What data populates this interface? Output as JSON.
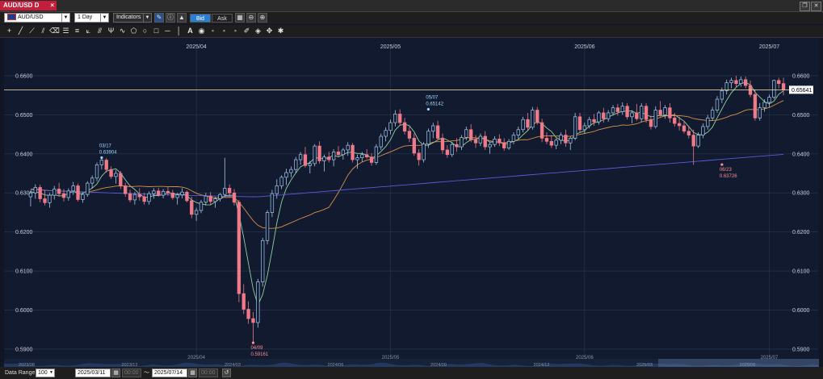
{
  "window": {
    "tab_title": "AUD/USD D",
    "close_glyph": "×",
    "restore_glyph": "❐",
    "close_btn_glyph": "✕"
  },
  "toolbar": {
    "symbol": "AUD/USD",
    "timeframe": "1 Day",
    "indicators_label": "Indicators",
    "bid_label": "Bid",
    "ask_label": "Ask"
  },
  "bottom": {
    "date_range_label": "Data Range:",
    "range_value": "100",
    "start_date": "2025/03/11",
    "tilde": "〜",
    "end_date": "2025/07/14",
    "time1": "00:00",
    "time2": "00:00"
  },
  "colors": {
    "bull_fill": "#0f1e36",
    "bull_stroke": "#a9c6e6",
    "bear": "#f07a8a",
    "ma_green": "#8fd19e",
    "ma_orange": "#d99048",
    "ma_blue": "#5a5ad8",
    "last_price_line": "#f5edb0",
    "grid": "#2c3852",
    "text": "#c8ccd8"
  },
  "chart_data": {
    "type": "candlestick",
    "y_ticks": [
      "0.6600",
      "0.6500",
      "0.6400",
      "0.6300",
      "0.6200",
      "0.6100",
      "0.6000",
      "0.5900"
    ],
    "ylim": [
      0.5875,
      0.6697
    ],
    "x_month_labels": [
      {
        "label": "2025/04",
        "index": 35
      },
      {
        "label": "2025/05",
        "index": 76
      },
      {
        "label": "2025/06",
        "index": 117
      },
      {
        "label": "2025/07",
        "index": 156
      }
    ],
    "last_price": "0.65641",
    "last_price_value": 0.65641,
    "annotations": [
      {
        "date": "03/17",
        "price": "0.63904",
        "index": 15,
        "value": 0.63904,
        "kind": "high"
      },
      {
        "date": "04/09",
        "price": "0.59161",
        "index": 47,
        "value": 0.59161,
        "kind": "low"
      },
      {
        "date": "05/07",
        "price": "0.65142",
        "index": 84,
        "value": 0.65142,
        "kind": "high"
      },
      {
        "date": "06/23",
        "price": "0.63726",
        "index": 146,
        "value": 0.63726,
        "kind": "low"
      },
      {
        "date": "07/11",
        "price": "0.65948",
        "index": 173,
        "value": 0.65948,
        "kind": "high"
      }
    ],
    "navigator_labels": [
      "2023/08",
      "2023/12",
      "2024/03",
      "2024/06",
      "2024/09",
      "2024/12",
      "2025/03",
      "2025/06"
    ],
    "navigator_top_labels": [
      "2025/04",
      "2025/05",
      "2025/06",
      "2025/07"
    ],
    "candles": [
      [
        0.629,
        0.6306,
        0.6265,
        0.63
      ],
      [
        0.63,
        0.6322,
        0.6285,
        0.6314
      ],
      [
        0.6314,
        0.6321,
        0.6276,
        0.6285
      ],
      [
        0.6285,
        0.6308,
        0.6268,
        0.6275
      ],
      [
        0.6275,
        0.63,
        0.6262,
        0.6294
      ],
      [
        0.6294,
        0.6318,
        0.6283,
        0.631
      ],
      [
        0.631,
        0.6326,
        0.629,
        0.6298
      ],
      [
        0.6298,
        0.631,
        0.6278,
        0.6288
      ],
      [
        0.6288,
        0.6312,
        0.628,
        0.6305
      ],
      [
        0.6305,
        0.6328,
        0.6295,
        0.6318
      ],
      [
        0.6318,
        0.6324,
        0.6278,
        0.6283
      ],
      [
        0.6283,
        0.6302,
        0.6275,
        0.6296
      ],
      [
        0.6296,
        0.633,
        0.629,
        0.6325
      ],
      [
        0.6325,
        0.6345,
        0.6312,
        0.6338
      ],
      [
        0.6338,
        0.6378,
        0.633,
        0.6372
      ],
      [
        0.6372,
        0.639,
        0.636,
        0.6384
      ],
      [
        0.6384,
        0.6389,
        0.6352,
        0.636
      ],
      [
        0.636,
        0.6368,
        0.6336,
        0.6342
      ],
      [
        0.6342,
        0.6358,
        0.6324,
        0.635
      ],
      [
        0.635,
        0.6356,
        0.631,
        0.6318
      ],
      [
        0.6318,
        0.6326,
        0.629,
        0.6298
      ],
      [
        0.6298,
        0.6308,
        0.6276,
        0.6282
      ],
      [
        0.6282,
        0.6302,
        0.627,
        0.6296
      ],
      [
        0.6296,
        0.6312,
        0.628,
        0.629
      ],
      [
        0.629,
        0.63,
        0.627,
        0.6278
      ],
      [
        0.6278,
        0.6304,
        0.627,
        0.6298
      ],
      [
        0.6298,
        0.6312,
        0.6285,
        0.6305
      ],
      [
        0.6305,
        0.6313,
        0.629,
        0.6294
      ],
      [
        0.6294,
        0.631,
        0.6286,
        0.6304
      ],
      [
        0.6304,
        0.6315,
        0.6293,
        0.63
      ],
      [
        0.63,
        0.6308,
        0.6283,
        0.6288
      ],
      [
        0.6288,
        0.63,
        0.627,
        0.6295
      ],
      [
        0.6295,
        0.6312,
        0.6286,
        0.6302
      ],
      [
        0.6302,
        0.6306,
        0.6276,
        0.628
      ],
      [
        0.628,
        0.629,
        0.6235,
        0.6245
      ],
      [
        0.6245,
        0.6262,
        0.6228,
        0.6255
      ],
      [
        0.6255,
        0.6282,
        0.6248,
        0.6276
      ],
      [
        0.6276,
        0.63,
        0.6268,
        0.6292
      ],
      [
        0.6292,
        0.6302,
        0.627,
        0.6278
      ],
      [
        0.6278,
        0.629,
        0.6262,
        0.6285
      ],
      [
        0.6285,
        0.63,
        0.6278,
        0.6296
      ],
      [
        0.6296,
        0.639,
        0.6288,
        0.6312
      ],
      [
        0.6312,
        0.6322,
        0.629,
        0.63
      ],
      [
        0.63,
        0.631,
        0.6268,
        0.6276
      ],
      [
        0.6276,
        0.6282,
        0.602,
        0.6042
      ],
      [
        0.6042,
        0.6066,
        0.599,
        0.6002
      ],
      [
        0.6002,
        0.6022,
        0.5965,
        0.5978
      ],
      [
        0.5978,
        0.5995,
        0.5916,
        0.5968
      ],
      [
        0.5968,
        0.608,
        0.5955,
        0.6072
      ],
      [
        0.6072,
        0.6185,
        0.606,
        0.6178
      ],
      [
        0.6178,
        0.6256,
        0.6168,
        0.625
      ],
      [
        0.625,
        0.6308,
        0.6238,
        0.6298
      ],
      [
        0.6298,
        0.6335,
        0.6285,
        0.6318
      ],
      [
        0.6318,
        0.6345,
        0.631,
        0.634
      ],
      [
        0.634,
        0.6362,
        0.632,
        0.6352
      ],
      [
        0.6352,
        0.6368,
        0.634,
        0.636
      ],
      [
        0.636,
        0.6392,
        0.635,
        0.6385
      ],
      [
        0.6385,
        0.6405,
        0.6372,
        0.6398
      ],
      [
        0.6398,
        0.6418,
        0.6365,
        0.637
      ],
      [
        0.637,
        0.6382,
        0.635,
        0.6375
      ],
      [
        0.6375,
        0.6425,
        0.6368,
        0.642
      ],
      [
        0.642,
        0.6432,
        0.6375,
        0.6382
      ],
      [
        0.6382,
        0.6398,
        0.6355,
        0.6392
      ],
      [
        0.6392,
        0.6405,
        0.6378,
        0.6385
      ],
      [
        0.6385,
        0.6412,
        0.6368,
        0.6405
      ],
      [
        0.6405,
        0.642,
        0.6392,
        0.6398
      ],
      [
        0.6398,
        0.6415,
        0.6385,
        0.641
      ],
      [
        0.641,
        0.643,
        0.6395,
        0.6422
      ],
      [
        0.6422,
        0.6428,
        0.6378,
        0.6385
      ],
      [
        0.6385,
        0.6398,
        0.6362,
        0.639
      ],
      [
        0.639,
        0.6405,
        0.638,
        0.6398
      ],
      [
        0.6398,
        0.6412,
        0.6388,
        0.6392
      ],
      [
        0.6392,
        0.6402,
        0.637,
        0.6378
      ],
      [
        0.6378,
        0.6425,
        0.6372,
        0.6418
      ],
      [
        0.6418,
        0.6452,
        0.641,
        0.6445
      ],
      [
        0.6445,
        0.6468,
        0.6432,
        0.646
      ],
      [
        0.646,
        0.6488,
        0.645,
        0.648
      ],
      [
        0.648,
        0.6512,
        0.647,
        0.6502
      ],
      [
        0.6502,
        0.6514,
        0.6472,
        0.648
      ],
      [
        0.648,
        0.6492,
        0.645,
        0.6458
      ],
      [
        0.6458,
        0.647,
        0.643,
        0.644
      ],
      [
        0.644,
        0.6452,
        0.6395,
        0.6402
      ],
      [
        0.6402,
        0.6412,
        0.637,
        0.6385
      ],
      [
        0.6385,
        0.643,
        0.6378,
        0.6425
      ],
      [
        0.6425,
        0.6465,
        0.6415,
        0.6458
      ],
      [
        0.6458,
        0.648,
        0.644,
        0.6472
      ],
      [
        0.6472,
        0.6485,
        0.6435,
        0.644
      ],
      [
        0.644,
        0.6452,
        0.64,
        0.641
      ],
      [
        0.641,
        0.6422,
        0.639,
        0.6398
      ],
      [
        0.6398,
        0.643,
        0.6392,
        0.6424
      ],
      [
        0.6424,
        0.644,
        0.6405,
        0.6418
      ],
      [
        0.6418,
        0.6448,
        0.641,
        0.6442
      ],
      [
        0.6442,
        0.647,
        0.6435,
        0.6462
      ],
      [
        0.6462,
        0.6476,
        0.643,
        0.6436
      ],
      [
        0.6436,
        0.6448,
        0.6415,
        0.6428
      ],
      [
        0.6428,
        0.6452,
        0.642,
        0.6445
      ],
      [
        0.6445,
        0.6458,
        0.641,
        0.6418
      ],
      [
        0.6418,
        0.643,
        0.64,
        0.6424
      ],
      [
        0.6424,
        0.6445,
        0.6418,
        0.6438
      ],
      [
        0.6438,
        0.645,
        0.642,
        0.6428
      ],
      [
        0.6428,
        0.644,
        0.6408,
        0.6415
      ],
      [
        0.6415,
        0.6438,
        0.641,
        0.6432
      ],
      [
        0.6432,
        0.6455,
        0.6425,
        0.6448
      ],
      [
        0.6448,
        0.647,
        0.6438,
        0.6462
      ],
      [
        0.6462,
        0.6495,
        0.6455,
        0.6488
      ],
      [
        0.6488,
        0.6505,
        0.646,
        0.6468
      ],
      [
        0.6468,
        0.652,
        0.6462,
        0.6512
      ],
      [
        0.6512,
        0.652,
        0.6475,
        0.648
      ],
      [
        0.648,
        0.649,
        0.643,
        0.644
      ],
      [
        0.644,
        0.6455,
        0.6425,
        0.6432
      ],
      [
        0.6432,
        0.6448,
        0.6415,
        0.6422
      ],
      [
        0.6422,
        0.644,
        0.6412,
        0.6435
      ],
      [
        0.6435,
        0.6455,
        0.6425,
        0.6448
      ],
      [
        0.6448,
        0.6462,
        0.6418,
        0.6428
      ],
      [
        0.6428,
        0.6445,
        0.641,
        0.644
      ],
      [
        0.644,
        0.6505,
        0.6435,
        0.6495
      ],
      [
        0.6495,
        0.6505,
        0.6455,
        0.6462
      ],
      [
        0.6462,
        0.648,
        0.6452,
        0.6472
      ],
      [
        0.6472,
        0.6495,
        0.6465,
        0.6488
      ],
      [
        0.6488,
        0.6502,
        0.6472,
        0.6482
      ],
      [
        0.6482,
        0.651,
        0.6475,
        0.6505
      ],
      [
        0.6505,
        0.6518,
        0.648,
        0.649
      ],
      [
        0.649,
        0.6512,
        0.6482,
        0.6505
      ],
      [
        0.6505,
        0.6525,
        0.6498,
        0.6518
      ],
      [
        0.6518,
        0.6528,
        0.6498,
        0.6508
      ],
      [
        0.6508,
        0.6532,
        0.65,
        0.6522
      ],
      [
        0.6522,
        0.653,
        0.6488,
        0.6495
      ],
      [
        0.6495,
        0.6512,
        0.6478,
        0.6505
      ],
      [
        0.6505,
        0.6528,
        0.6485,
        0.649
      ],
      [
        0.649,
        0.653,
        0.6482,
        0.6522
      ],
      [
        0.6522,
        0.653,
        0.648,
        0.6488
      ],
      [
        0.6488,
        0.6498,
        0.6462,
        0.647
      ],
      [
        0.647,
        0.6522,
        0.6465,
        0.6512
      ],
      [
        0.6512,
        0.6535,
        0.6495,
        0.65
      ],
      [
        0.65,
        0.6525,
        0.649,
        0.6518
      ],
      [
        0.6518,
        0.653,
        0.648,
        0.6492
      ],
      [
        0.6492,
        0.6505,
        0.647,
        0.6478
      ],
      [
        0.6478,
        0.6495,
        0.646,
        0.6472
      ],
      [
        0.6472,
        0.6485,
        0.6452,
        0.6458
      ],
      [
        0.6458,
        0.6472,
        0.644,
        0.6448
      ],
      [
        0.6448,
        0.6462,
        0.6372,
        0.642
      ],
      [
        0.642,
        0.6455,
        0.6415,
        0.6448
      ],
      [
        0.6448,
        0.6478,
        0.644,
        0.647
      ],
      [
        0.647,
        0.65,
        0.6462,
        0.6492
      ],
      [
        0.6492,
        0.652,
        0.6485,
        0.6512
      ],
      [
        0.6512,
        0.6548,
        0.6505,
        0.654
      ],
      [
        0.654,
        0.657,
        0.653,
        0.6562
      ],
      [
        0.6562,
        0.659,
        0.6552,
        0.6582
      ],
      [
        0.6582,
        0.6595,
        0.6568,
        0.6588
      ],
      [
        0.6588,
        0.66,
        0.657,
        0.658
      ],
      [
        0.658,
        0.6598,
        0.6572,
        0.659
      ],
      [
        0.659,
        0.6598,
        0.6568,
        0.6575
      ],
      [
        0.6575,
        0.6588,
        0.6545,
        0.6552
      ],
      [
        0.6552,
        0.6565,
        0.6485,
        0.6492
      ],
      [
        0.6492,
        0.653,
        0.6485,
        0.6518
      ],
      [
        0.6518,
        0.654,
        0.6508,
        0.6532
      ],
      [
        0.6532,
        0.6552,
        0.652,
        0.6545
      ],
      [
        0.6545,
        0.659,
        0.654,
        0.6588
      ],
      [
        0.6588,
        0.6595,
        0.6568,
        0.658
      ],
      [
        0.658,
        0.6595,
        0.655,
        0.6564
      ]
    ]
  }
}
